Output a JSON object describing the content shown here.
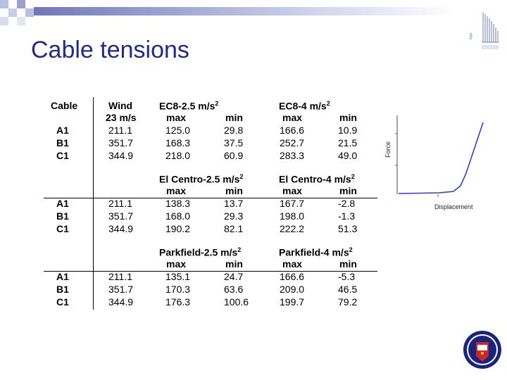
{
  "title": "Cable tensions",
  "header": {
    "cable": "Cable",
    "wind": "Wind",
    "wind_speed": "23 m/s",
    "max": "max",
    "min": "min"
  },
  "sections": [
    {
      "cases": [
        {
          "name": "EC8-2.5 m/s",
          "sup": "2"
        },
        {
          "name": "EC8-4 m/s",
          "sup": "2"
        }
      ],
      "rows": [
        {
          "cable": "A1",
          "wind": "211.1",
          "v": [
            "125.0",
            "29.8",
            "166.6",
            "10.9"
          ]
        },
        {
          "cable": "B1",
          "wind": "351.7",
          "v": [
            "168.3",
            "37.5",
            "252.7",
            "21.5"
          ]
        },
        {
          "cable": "C1",
          "wind": "344.9",
          "v": [
            "218.0",
            "60.9",
            "283.3",
            "49.0"
          ]
        }
      ]
    },
    {
      "cases": [
        {
          "name": "El Centro-2.5 m/s",
          "sup": "2"
        },
        {
          "name": "El Centro-4 m/s",
          "sup": "2"
        }
      ],
      "rows": [
        {
          "cable": "A1",
          "wind": "211.1",
          "v": [
            "138.3",
            "13.7",
            "167.7",
            "-2.8"
          ]
        },
        {
          "cable": "B1",
          "wind": "351.7",
          "v": [
            "168.0",
            "29.3",
            "198.0",
            "-1.3"
          ]
        },
        {
          "cable": "C1",
          "wind": "344.9",
          "v": [
            "190.2",
            "82.1",
            "222.2",
            "51.3"
          ]
        }
      ]
    },
    {
      "cases": [
        {
          "name": "Parkfield-2.5 m/s",
          "sup": "2"
        },
        {
          "name": "Parkfield-4 m/s",
          "sup": "2"
        }
      ],
      "rows": [
        {
          "cable": "A1",
          "wind": "211.1",
          "v": [
            "135.1",
            "24.7",
            "166.6",
            "-5.3"
          ]
        },
        {
          "cable": "B1",
          "wind": "351.7",
          "v": [
            "170.3",
            "63.6",
            "209.0",
            "46.5"
          ]
        },
        {
          "cable": "C1",
          "wind": "344.9",
          "v": [
            "176.3",
            "100.6",
            "199.7",
            "79.2"
          ]
        }
      ]
    }
  ],
  "graph": {
    "ylabel": "Force",
    "xlabel": "Displacement",
    "line_color": "#2a3fd6"
  },
  "colors": {
    "title": "#1f2a8a",
    "band": "#6f78b8"
  },
  "icons": [
    "checkered-corner-icon",
    "building-logo-icon",
    "university-crest-icon"
  ]
}
